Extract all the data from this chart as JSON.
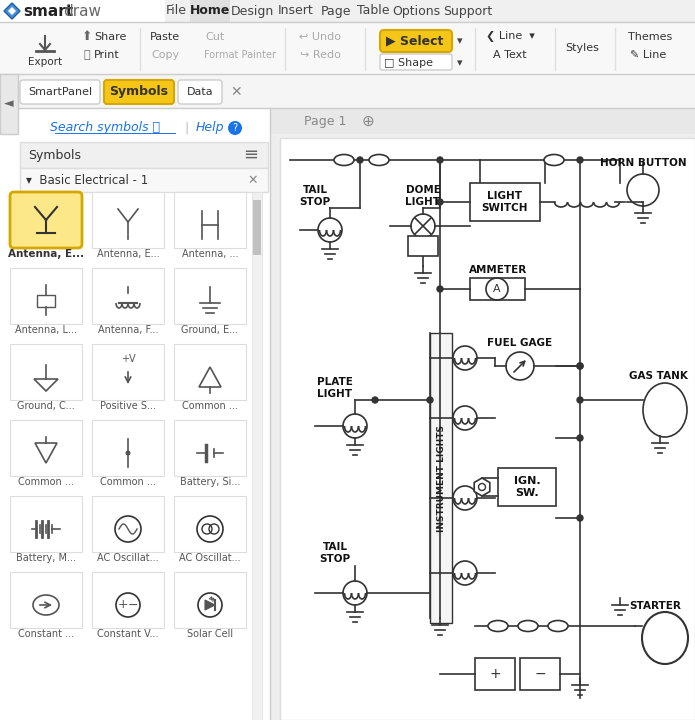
{
  "white": "#ffffff",
  "yellow_btn": "#f5c518",
  "yellow_btn_border": "#d4a800",
  "blue_text": "#1a73e8",
  "LC": "#333333",
  "sym_labels": [
    "Antenna, E...",
    "Antenna, E...",
    "Antenna, ...",
    "Antenna, L...",
    "Antenna, F...",
    "Ground, E...",
    "Ground, C...",
    "Positive S...",
    "Common ...",
    "Common ...",
    "Common ...",
    "Battery, Si...",
    "Battery, M...",
    "AC Oscillat...",
    "AC Oscillat...",
    "Constant ...",
    "Constant V...",
    "Solar Cell"
  ]
}
